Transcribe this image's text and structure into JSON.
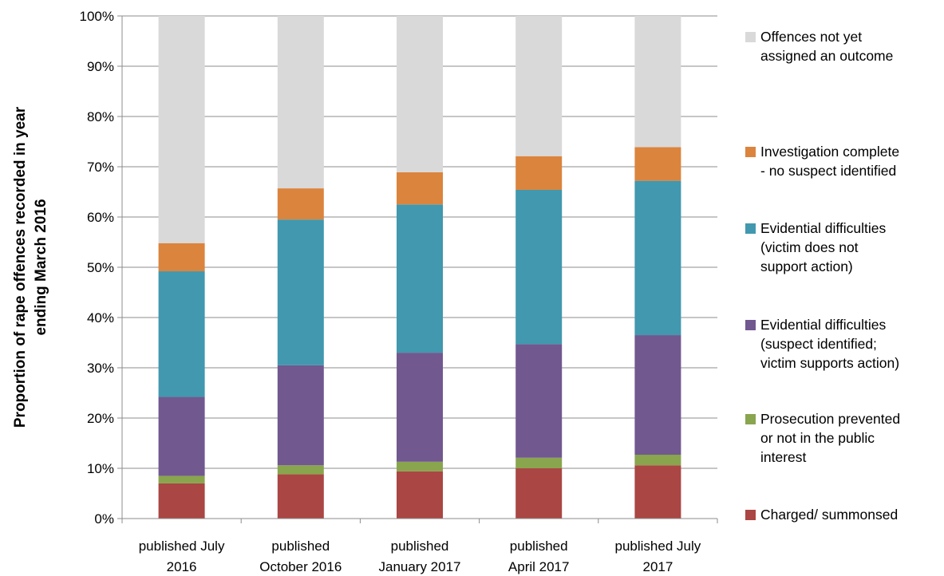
{
  "chart_data": {
    "type": "bar",
    "stacked": true,
    "ylabel_lines": [
      "Proportion of rape  offences recorded in year",
      "ending March 2016"
    ],
    "xlabel": "",
    "ylim": [
      0,
      100
    ],
    "yticks": [
      "0%",
      "10%",
      "20%",
      "30%",
      "40%",
      "50%",
      "60%",
      "70%",
      "80%",
      "90%",
      "100%"
    ],
    "categories": [
      {
        "lines": [
          "published July",
          "2016"
        ]
      },
      {
        "lines": [
          "published",
          "October 2016"
        ]
      },
      {
        "lines": [
          "published",
          "January 2017"
        ]
      },
      {
        "lines": [
          "published",
          "April 2017"
        ]
      },
      {
        "lines": [
          "published July",
          "2017"
        ]
      }
    ],
    "series": [
      {
        "name": "Charged/ summonsed",
        "legend_lines": [
          "Charged/ summonsed"
        ],
        "color": "#AA4643",
        "values": [
          7.0,
          8.8,
          9.4,
          10.0,
          10.6
        ]
      },
      {
        "name": "Prosecution prevented or not in the public interest",
        "legend_lines": [
          "Prosecution prevented",
          "or not in the public",
          "interest"
        ],
        "color": "#89A54E",
        "values": [
          1.5,
          1.8,
          1.9,
          2.1,
          2.1
        ]
      },
      {
        "name": "Evidential difficulties (suspect identified; victim supports action)",
        "legend_lines": [
          "Evidential difficulties",
          "(suspect identified;",
          "victim supports action)"
        ],
        "color": "#71588F",
        "values": [
          15.7,
          19.9,
          21.7,
          22.6,
          23.8
        ]
      },
      {
        "name": "Evidential difficulties (victim does not support action)",
        "legend_lines": [
          "Evidential difficulties",
          "(victim does not",
          "support action)"
        ],
        "color": "#4198AF",
        "values": [
          25.0,
          29.0,
          29.5,
          30.7,
          30.7
        ]
      },
      {
        "name": "Investigation complete - no suspect identified",
        "legend_lines": [
          "Investigation complete",
          "- no suspect identified"
        ],
        "color": "#DB843D",
        "values": [
          5.6,
          6.2,
          6.4,
          6.7,
          6.7
        ]
      },
      {
        "name": "Offences not yet assigned an outcome",
        "legend_lines": [
          "Offences not yet",
          "assigned an outcome"
        ],
        "color": "#D9D9D9",
        "values": [
          45.2,
          34.3,
          31.1,
          27.9,
          26.1
        ]
      }
    ],
    "grid": true,
    "legend_position": "right"
  }
}
